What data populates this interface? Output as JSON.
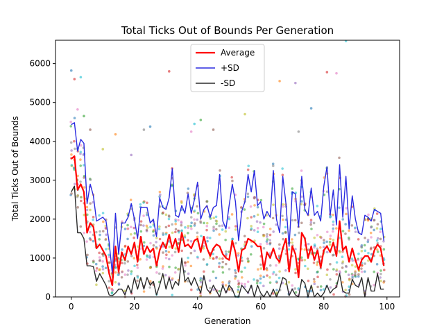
{
  "chart_data": {
    "type": "line",
    "title": "Total Ticks Out of Bounds Per Generation",
    "xlabel": "Generation",
    "ylabel": "Total Ticks Out of Bounds",
    "xlim": [
      -5,
      104
    ],
    "ylim": [
      0,
      6600
    ],
    "x_ticks": [
      0,
      20,
      40,
      60,
      80,
      100
    ],
    "y_ticks": [
      0,
      1000,
      2000,
      3000,
      4000,
      5000,
      6000
    ],
    "legend_position": "top-center",
    "grid": false,
    "series": [
      {
        "name": "Average",
        "color": "#ff0000",
        "values": [
          3550,
          3620,
          2750,
          2900,
          2700,
          1650,
          1900,
          1800,
          1250,
          1350,
          1200,
          1050,
          600,
          300,
          1300,
          650,
          1150,
          950,
          1300,
          1100,
          1400,
          900,
          1550,
          1100,
          1300,
          1150,
          1250,
          800,
          1200,
          1400,
          1250,
          1600,
          1250,
          1500,
          1150,
          1650,
          1300,
          1350,
          1250,
          1450,
          1500,
          1150,
          1550,
          1250,
          1050,
          1250,
          1350,
          1300,
          1100,
          1000,
          950,
          1450,
          1150,
          650,
          1200,
          1250,
          1500,
          1450,
          1400,
          1300,
          1300,
          700,
          1150,
          1000,
          1250,
          1000,
          900,
          1250,
          1500,
          650,
          1300,
          1100,
          500,
          1650,
          1500,
          1000,
          1300,
          950,
          1200,
          750,
          1200,
          1300,
          1150,
          1400,
          1050,
          1950,
          1200,
          1300,
          900,
          1250,
          950,
          700,
          950,
          1050,
          1050,
          900,
          1200,
          1350,
          1250,
          800
        ]
      },
      {
        "name": "+SD",
        "color": "#2a2adf",
        "values": [
          4430,
          4480,
          3750,
          4050,
          3950,
          2400,
          2900,
          2600,
          1950,
          2000,
          2050,
          1950,
          1400,
          600,
          2150,
          1100,
          1900,
          1900,
          2050,
          2400,
          2000,
          1500,
          2300,
          2300,
          2300,
          1900,
          2000,
          1550,
          2550,
          2300,
          2250,
          2550,
          3300,
          2100,
          2050,
          2350,
          2150,
          2650,
          2150,
          2500,
          2950,
          2000,
          2250,
          2350,
          2050,
          2300,
          2350,
          3150,
          1950,
          1750,
          2350,
          2900,
          2450,
          1450,
          2200,
          2450,
          3150,
          2700,
          3250,
          2350,
          2450,
          2000,
          2200,
          2050,
          3250,
          2000,
          1650,
          3100,
          2400,
          1300,
          2700,
          2650,
          1800,
          3100,
          2250,
          2100,
          2800,
          2100,
          2200,
          1950,
          2850,
          3350,
          2100,
          2750,
          1850,
          3400,
          2050,
          3100,
          1750,
          2600,
          2000,
          1650,
          1600,
          2100,
          2050,
          1950,
          2250,
          2200,
          2150,
          1450
        ]
      },
      {
        "name": "-SD",
        "color": "#2b2b2b",
        "values": [
          2700,
          2850,
          1650,
          1650,
          1500,
          800,
          800,
          780,
          400,
          600,
          450,
          300,
          50,
          30,
          100,
          200,
          200,
          50,
          300,
          100,
          500,
          200,
          500,
          200,
          500,
          300,
          400,
          50,
          300,
          600,
          200,
          500,
          200,
          400,
          300,
          1000,
          400,
          500,
          300,
          500,
          300,
          100,
          550,
          200,
          100,
          300,
          150,
          0,
          300,
          100,
          300,
          200,
          0,
          0,
          300,
          200,
          100,
          300,
          0,
          300,
          100,
          0,
          150,
          0,
          200,
          0,
          200,
          500,
          450,
          30,
          200,
          50,
          0,
          450,
          350,
          0,
          300,
          0,
          100,
          0,
          100,
          300,
          100,
          200,
          250,
          600,
          150,
          100,
          100,
          450,
          300,
          250,
          500,
          0,
          500,
          150,
          150,
          600,
          200,
          200
        ]
      }
    ],
    "scatter": {
      "colors": [
        "#1f77b4",
        "#ff7f0e",
        "#2ca02c",
        "#d62728",
        "#9467bd",
        "#8c564b",
        "#e377c2",
        "#7f7f7f",
        "#bcbd22",
        "#17becf"
      ],
      "outliers": [
        [
          0,
          5820
        ],
        [
          1,
          5600
        ],
        [
          2,
          4820
        ],
        [
          3,
          5650
        ],
        [
          4,
          4650
        ],
        [
          6,
          4300
        ],
        [
          10,
          3800
        ],
        [
          14,
          4180
        ],
        [
          19,
          3650
        ],
        [
          23,
          4300
        ],
        [
          25,
          4380
        ],
        [
          31,
          5800
        ],
        [
          38,
          4250
        ],
        [
          39,
          4450
        ],
        [
          41,
          4550
        ],
        [
          45,
          4300
        ],
        [
          55,
          4700
        ],
        [
          66,
          5550
        ],
        [
          71,
          5500
        ],
        [
          72,
          4250
        ],
        [
          76,
          4850
        ],
        [
          81,
          5780
        ],
        [
          84,
          5750
        ],
        [
          87,
          6580
        ]
      ]
    }
  }
}
